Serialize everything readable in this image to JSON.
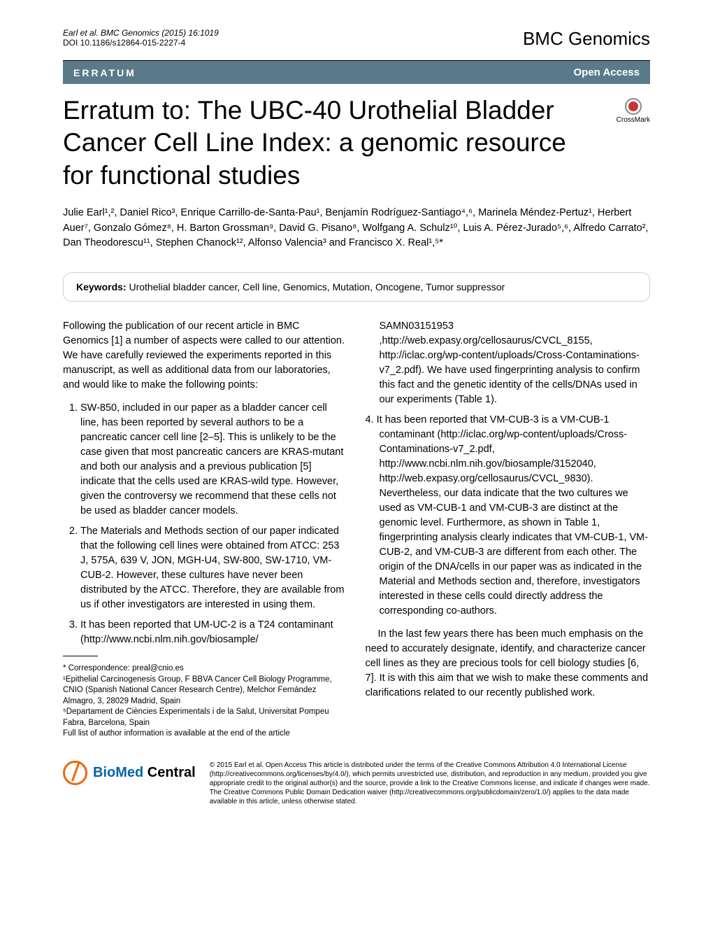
{
  "header": {
    "citation": "Earl et al. BMC Genomics  (2015) 16:1019",
    "doi": "DOI 10.1186/s12864-015-2227-4",
    "journal": "BMC Genomics"
  },
  "bar": {
    "label": "ERRATUM",
    "access": "Open Access"
  },
  "crossmark": "CrossMark",
  "title": "Erratum to: The UBC-40 Urothelial Bladder Cancer Cell Line Index: a genomic resource for functional studies",
  "authors": "Julie Earl¹,², Daniel Rico³, Enrique Carrillo-de-Santa-Pau¹, Benjamín Rodríguez-Santiago⁴,⁶, Marinela Méndez-Pertuz¹, Herbert Auer⁷, Gonzalo Gómez⁸, H. Barton Grossman⁹, David G. Pisano⁸, Wolfgang A. Schulz¹⁰, Luis A. Pérez-Jurado⁵,⁶, Alfredo Carrato², Dan Theodorescu¹¹, Stephen Chanock¹², Alfonso Valencia³ and Francisco X. Real¹,⁵*",
  "keywords": {
    "label": "Keywords:",
    "text": " Urothelial bladder cancer, Cell line, Genomics, Mutation, Oncogene, Tumor suppressor"
  },
  "leftCol": {
    "intro": "Following the publication of our recent article in BMC Genomics [1] a number of aspects were called to our attention. We have carefully reviewed the experiments reported in this manuscript, as well as additional data from our laboratories, and would like to make the following points:",
    "item1": "SW-850, included in our paper as a bladder cancer cell line, has been reported by several authors to be a pancreatic cancer cell line [2–5]. This is unlikely to be the case given that most pancreatic cancers are KRAS-mutant and both our analysis and a previous publication [5] indicate that the cells used are KRAS-wild type. However, given the controversy we recommend that these cells not be used as bladder cancer models.",
    "item2": "The Materials and Methods section of our paper indicated that the following cell lines were obtained from ATCC: 253 J, 575A, 639 V, JON, MGH-U4, SW-800, SW-1710, VM-CUB-2. However, these cultures have never been distributed by the ATCC. Therefore, they are available from us if other investigators are interested in using them.",
    "item3": "It has been reported that UM-UC-2 is a T24 contaminant (http://www.ncbi.nlm.nih.gov/biosample/"
  },
  "rightCol": {
    "item3cont": "SAMN03151953 ,http://web.expasy.org/cellosaurus/CVCL_8155, http://iclac.org/wp-content/uploads/Cross-Contaminations-v7_2.pdf). We have used fingerprinting analysis to confirm this fact and the genetic identity of the cells/DNAs used in our experiments (Table 1).",
    "item4": "It has been reported that VM-CUB-3 is a VM-CUB-1 contaminant (http://iclac.org/wp-content/uploads/Cross-Contaminations-v7_2.pdf, http://www.ncbi.nlm.nih.gov/biosample/3152040, http://web.expasy.org/cellosaurus/CVCL_9830). Nevertheless, our data indicate that the two cultures we used as VM-CUB-1 and VM-CUB-3 are distinct at the genomic level. Furthermore, as shown in Table 1, fingerprinting analysis clearly indicates that VM-CUB-1, VM-CUB-2, and VM-CUB-3 are different from each other. The origin of the DNA/cells in our paper was as indicated in the Material and Methods section and, therefore, investigators interested in these cells could directly address the corresponding co-authors.",
    "closing": "In the last few years there has been much emphasis on the need to accurately designate, identify, and characterize cancer cell lines as they are precious tools for cell biology studies [6, 7]. It is with this aim that we wish to make these comments and clarifications related to our recently published work."
  },
  "footer": {
    "correspondence": "* Correspondence: preal@cnio.es",
    "affil1": "¹Epithelial Carcinogenesis Group, F BBVA Cancer Cell Biology Programme, CNIO (Spanish National Cancer Research Centre), Melchor Fernández Almagro, 3, 28029 Madrid, Spain",
    "affil5": "⁵Departament de Ciències Experimentals i de la Salut, Universitat Pompeu Fabra, Barcelona, Spain",
    "fullList": "Full list of author information is available at the end of the article"
  },
  "logo": {
    "bio": "BioMed",
    "central": " Central"
  },
  "license": "© 2015 Earl et al. Open Access This article is distributed under the terms of the Creative Commons Attribution 4.0 International License (http://creativecommons.org/licenses/by/4.0/), which permits unrestricted use, distribution, and reproduction in any medium, provided you give appropriate credit to the original author(s) and the source, provide a link to the Creative Commons license, and indicate if changes were made. The Creative Commons Public Domain Dedication waiver (http://creativecommons.org/publicdomain/zero/1.0/) applies to the data made available in this article, unless otherwise stated.",
  "colors": {
    "bar_bg": "#5a7a8a",
    "bar_text": "#ffffff",
    "biomed_orange": "#eb690b",
    "crossmark_red": "#cc3333"
  }
}
